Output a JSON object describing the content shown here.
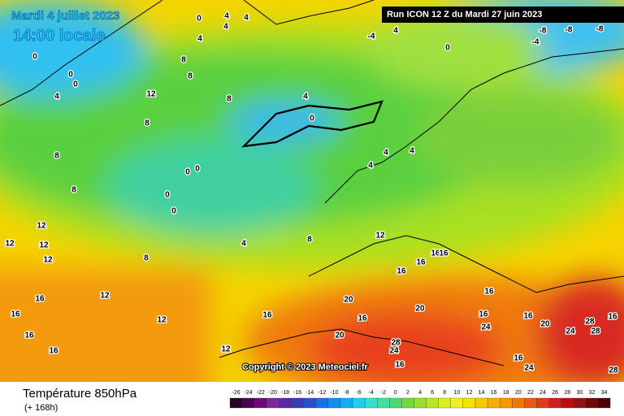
{
  "header": {
    "date": "Mardi 4 juillet 2023",
    "time": "14:00 locale",
    "run": "Run ICON 12 Z du Mardi 27 juin 2023"
  },
  "copyright": "Copyright © 2023 Meteociel.fr",
  "footer": {
    "title": "Température 850hPa",
    "subtitle": "(+ 168h)"
  },
  "legend": {
    "ticks": [
      -26,
      -24,
      -22,
      -20,
      -18,
      -16,
      -14,
      -12,
      -10,
      -8,
      -6,
      -4,
      -2,
      0,
      2,
      4,
      6,
      8,
      10,
      12,
      14,
      16,
      18,
      20,
      22,
      24,
      26,
      28,
      30,
      32,
      34
    ]
  },
  "map": {
    "labels": [
      "0",
      "4",
      "4",
      "4",
      "4",
      "-4",
      "4",
      "0",
      "-8",
      "-8",
      "-8",
      "-4",
      "0",
      "0",
      "0",
      "4",
      "12",
      "8",
      "8",
      "8",
      "4",
      "0",
      "8",
      "8",
      "8",
      "0",
      "0",
      "0",
      "0",
      "4",
      "8",
      "4",
      "4",
      "4",
      "12",
      "12",
      "12",
      "12",
      "8",
      "12",
      "16",
      "16",
      "16",
      "16",
      "12",
      "16",
      "12",
      "12",
      "16",
      "16",
      "16",
      "16",
      "16",
      "20",
      "20",
      "20",
      "16",
      "16",
      "24",
      "24",
      "28",
      "16",
      "16",
      "24",
      "20",
      "24",
      "28",
      "28",
      "28",
      "16",
      "16"
    ]
  }
}
